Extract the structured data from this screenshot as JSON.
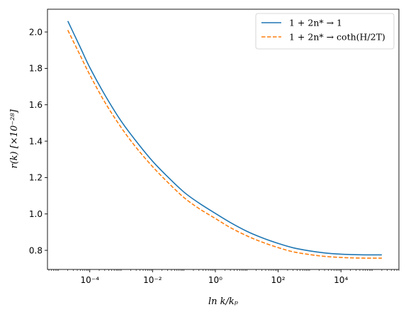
{
  "chart_data": {
    "type": "line",
    "xscale": "log",
    "x_ticks": [
      0.0001,
      0.01,
      1,
      100,
      10000
    ],
    "x_tick_labels": [
      "10⁻⁴",
      "10⁻²",
      "10⁰",
      "10²",
      "10⁴"
    ],
    "xlim": [
      4.5e-06,
      700000
    ],
    "y_ticks": [
      0.8,
      1.0,
      1.2,
      1.4,
      1.6,
      1.8,
      2.0
    ],
    "y_tick_labels": [
      "0.8",
      "1.0",
      "1.2",
      "1.4",
      "1.6",
      "1.8",
      "2.0"
    ],
    "ylim": [
      0.695,
      2.125
    ],
    "xlabel": "ln k/kₚ",
    "ylabel": "r(k)  [×10⁻²⁸]",
    "legend_position": "top-right",
    "grid": false,
    "series": [
      {
        "name": "1 + 2n* → 1",
        "color": "#1f77b4",
        "style": "solid",
        "x": [
          2e-05,
          5e-05,
          0.0001,
          0.0003,
          0.001,
          0.003,
          0.01,
          0.03,
          0.1,
          0.3,
          1,
          3,
          10,
          30,
          100,
          300,
          1000,
          3000,
          10000,
          30000,
          100000,
          200000
        ],
        "y": [
          2.06,
          1.915,
          1.805,
          1.655,
          1.51,
          1.4,
          1.29,
          1.205,
          1.12,
          1.06,
          1.003,
          0.953,
          0.905,
          0.87,
          0.838,
          0.814,
          0.797,
          0.786,
          0.779,
          0.776,
          0.775,
          0.775
        ]
      },
      {
        "name": "1 + 2n* → coth(H/2T)",
        "color": "#ff7f0e",
        "style": "dashed",
        "x": [
          2e-05,
          5e-05,
          0.0001,
          0.0003,
          0.001,
          0.003,
          0.01,
          0.03,
          0.1,
          0.3,
          1,
          3,
          10,
          30,
          100,
          300,
          1000,
          3000,
          10000,
          30000,
          100000,
          200000
        ],
        "y": [
          2.01,
          1.87,
          1.765,
          1.615,
          1.475,
          1.365,
          1.26,
          1.175,
          1.09,
          1.03,
          0.975,
          0.925,
          0.88,
          0.846,
          0.815,
          0.792,
          0.777,
          0.767,
          0.761,
          0.758,
          0.757,
          0.757
        ]
      }
    ]
  }
}
